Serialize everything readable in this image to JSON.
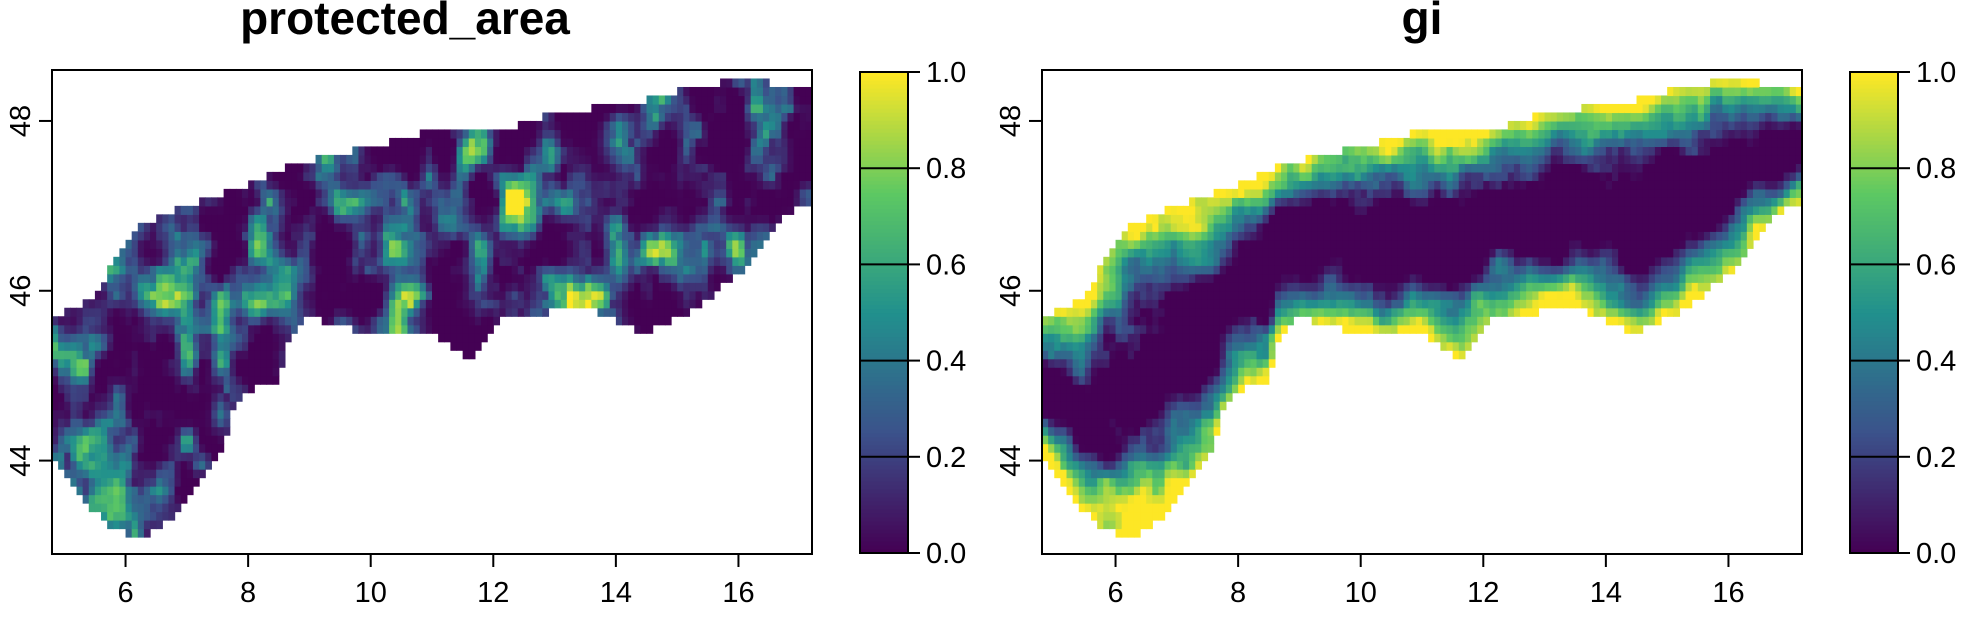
{
  "chart_data": [
    {
      "type": "heatmap",
      "title": "protected_area",
      "xlim": [
        4.8,
        17.2
      ],
      "ylim": [
        42.9,
        48.6
      ],
      "x_ticks": [
        "6",
        "8",
        "10",
        "12",
        "14",
        "16"
      ],
      "y_ticks": [
        "44",
        "46",
        "48"
      ],
      "colorbar": {
        "range": [
          0.0,
          1.0
        ],
        "ticks": [
          "0.0",
          "0.2",
          "0.4",
          "0.6",
          "0.8",
          "1.0"
        ],
        "colors": [
          "#440154",
          "#3b528b",
          "#21908d",
          "#5dc863",
          "#fde725"
        ]
      },
      "pattern": "patchy mix, mostly low values with scattered high-value clusters"
    },
    {
      "type": "heatmap",
      "title": "gi",
      "xlim": [
        4.8,
        17.2
      ],
      "ylim": [
        42.9,
        48.6
      ],
      "x_ticks": [
        "6",
        "8",
        "10",
        "12",
        "14",
        "16"
      ],
      "y_ticks": [
        "44",
        "46",
        "48"
      ],
      "colorbar": {
        "range": [
          0.0,
          1.0
        ],
        "ticks": [
          "0.0",
          "0.2",
          "0.4",
          "0.6",
          "0.8",
          "1.0"
        ],
        "colors": [
          "#440154",
          "#3b528b",
          "#21908d",
          "#5dc863",
          "#fde725"
        ]
      },
      "pattern": "low-value core surrounded by a high-value border ring"
    }
  ]
}
